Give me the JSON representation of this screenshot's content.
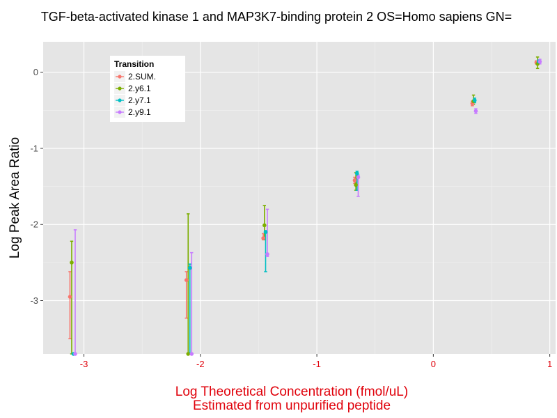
{
  "chart_data": {
    "type": "scatter",
    "title": "TGF-beta-activated kinase 1 and MAP3K7-binding protein 2 OS=Homo sapiens GN=",
    "xlabel_line1": "Log Theoretical Concentration (fmol/uL)",
    "xlabel_line2": "Estimated from unpurified peptide",
    "ylabel": "Log Peak Area Ratio",
    "xlim": [
      -3.35,
      1.05
    ],
    "ylim": [
      -3.7,
      0.4
    ],
    "x_ticks": [
      -3,
      -2,
      -1,
      0,
      1
    ],
    "x_tick_labels": [
      "-3",
      "-2",
      "-1",
      "0",
      "1"
    ],
    "y_ticks": [
      -3,
      -2,
      -1,
      0
    ],
    "y_tick_labels": [
      "-3",
      "-2",
      "-1",
      "0"
    ],
    "grid": true,
    "legend": {
      "title": "Transition",
      "placement": "top-left",
      "entries": [
        "2.SUM.",
        "2.y6.1",
        "2.y7.1",
        "2.y9.1"
      ]
    },
    "series": [
      {
        "name": "2.SUM.",
        "color": "#f8766d",
        "points": [
          {
            "x": -3.12,
            "y": -2.95,
            "ymin": -3.5,
            "ymax": -2.62
          },
          {
            "x": -2.12,
            "y": -2.73,
            "ymin": -3.23,
            "ymax": -2.62
          },
          {
            "x": -1.46,
            "y": -2.18,
            "ymin": -2.2,
            "ymax": -2.12
          },
          {
            "x": -0.675,
            "y": -1.42,
            "ymin": -1.46,
            "ymax": -1.38
          },
          {
            "x": 0.335,
            "y": -0.41,
            "ymin": -0.44,
            "ymax": -0.38
          },
          {
            "x": 0.885,
            "y": 0.13,
            "ymin": 0.11,
            "ymax": 0.15
          }
        ]
      },
      {
        "name": "2.y6.1",
        "color": "#7cae00",
        "points": [
          {
            "x": -3.105,
            "y": -2.5,
            "ymin": -3.7,
            "ymax": -2.22
          },
          {
            "x": -2.105,
            "y": -3.7,
            "ymin": -3.7,
            "ymax": -1.86
          },
          {
            "x": -1.45,
            "y": -2.01,
            "ymin": -2.2,
            "ymax": -1.75
          },
          {
            "x": -0.665,
            "y": -1.48,
            "ymin": -1.55,
            "ymax": -1.32
          },
          {
            "x": 0.345,
            "y": -0.38,
            "ymin": -0.42,
            "ymax": -0.3
          },
          {
            "x": 0.895,
            "y": 0.11,
            "ymin": 0.05,
            "ymax": 0.2
          }
        ]
      },
      {
        "name": "2.y7.1",
        "color": "#00bfc4",
        "points": [
          {
            "x": -3.09,
            "y": -3.7,
            "ymin": -3.7,
            "ymax": -3.7
          },
          {
            "x": -2.09,
            "y": -2.57,
            "ymin": -3.7,
            "ymax": -2.52
          },
          {
            "x": -1.44,
            "y": -2.1,
            "ymin": -2.62,
            "ymax": -2.08
          },
          {
            "x": -0.655,
            "y": -1.33,
            "ymin": -1.55,
            "ymax": -1.3
          },
          {
            "x": 0.355,
            "y": -0.37,
            "ymin": -0.4,
            "ymax": -0.34
          },
          {
            "x": 0.905,
            "y": 0.14,
            "ymin": 0.12,
            "ymax": 0.16
          }
        ]
      },
      {
        "name": "2.y9.1",
        "color": "#c77cff",
        "points": [
          {
            "x": -3.075,
            "y": -3.7,
            "ymin": -3.7,
            "ymax": -2.07
          },
          {
            "x": -2.075,
            "y": -3.7,
            "ymin": -3.7,
            "ymax": -2.37
          },
          {
            "x": -1.425,
            "y": -2.39,
            "ymin": -2.42,
            "ymax": -1.8
          },
          {
            "x": -0.645,
            "y": -1.38,
            "ymin": -1.63,
            "ymax": -1.35
          },
          {
            "x": 0.365,
            "y": -0.51,
            "ymin": -0.54,
            "ymax": -0.48
          },
          {
            "x": 0.915,
            "y": 0.14,
            "ymin": 0.11,
            "ymax": 0.17
          }
        ]
      }
    ]
  }
}
